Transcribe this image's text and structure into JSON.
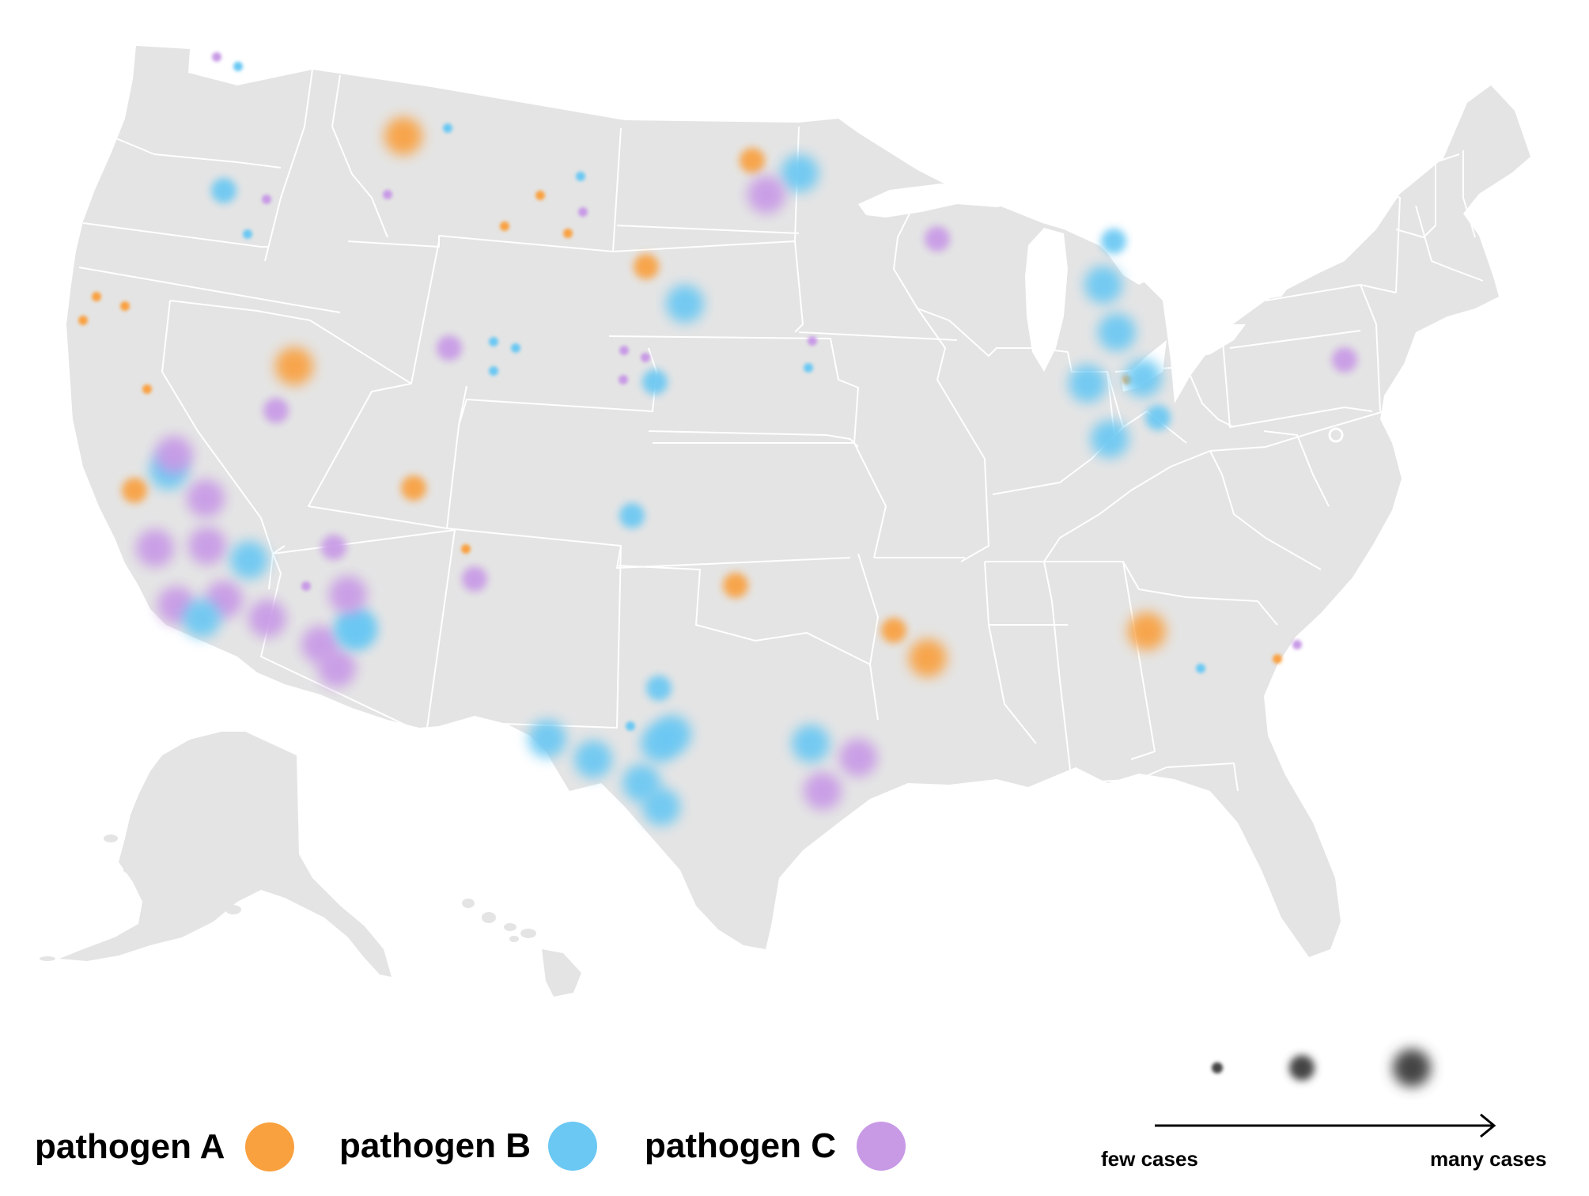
{
  "colors": {
    "land": "#e4e4e4",
    "border": "#ffffff",
    "pathogen_a": "#f9a03f",
    "pathogen_b": "#6ac8f3",
    "pathogen_c": "#c89ae6",
    "scale_dot": "#444444"
  },
  "legend": {
    "pathogen_a": "pathogen A",
    "pathogen_b": "pathogen B",
    "pathogen_c": "pathogen C",
    "few": "few cases",
    "many": "many cases"
  },
  "scale_levels": [
    "small",
    "medium",
    "large"
  ],
  "clusters": [
    {
      "pathogen": "A",
      "size": "large",
      "place": "western Montana"
    },
    {
      "pathogen": "A",
      "size": "large",
      "place": "northern Nevada"
    },
    {
      "pathogen": "A",
      "size": "medium",
      "place": "Utah"
    },
    {
      "pathogen": "A",
      "size": "medium",
      "place": "northern California"
    },
    {
      "pathogen": "A",
      "size": "medium",
      "place": "North Dakota"
    },
    {
      "pathogen": "A",
      "size": "medium",
      "place": "South Dakota"
    },
    {
      "pathogen": "A",
      "size": "medium",
      "place": "Oklahoma"
    },
    {
      "pathogen": "A",
      "size": "medium",
      "place": "western Arkansas"
    },
    {
      "pathogen": "A",
      "size": "large",
      "place": "Arkansas"
    },
    {
      "pathogen": "A",
      "size": "large",
      "place": "northern Georgia"
    },
    {
      "pathogen": "B",
      "size": "medium",
      "place": "Oregon"
    },
    {
      "pathogen": "B",
      "size": "large",
      "place": "Minnesota"
    },
    {
      "pathogen": "B",
      "size": "large",
      "place": "South Dakota"
    },
    {
      "pathogen": "B",
      "size": "medium",
      "place": "Nebraska"
    },
    {
      "pathogen": "B",
      "size": "medium",
      "place": "Colorado"
    },
    {
      "pathogen": "B",
      "size": "large",
      "place": "Michigan"
    },
    {
      "pathogen": "B",
      "size": "large",
      "place": "Indiana"
    },
    {
      "pathogen": "B",
      "size": "medium",
      "place": "Ohio"
    },
    {
      "pathogen": "B",
      "size": "large",
      "place": "west Texas"
    },
    {
      "pathogen": "B",
      "size": "large",
      "place": "central Texas"
    },
    {
      "pathogen": "B",
      "size": "large",
      "place": "east Texas"
    },
    {
      "pathogen": "B",
      "size": "large",
      "place": "southern California"
    },
    {
      "pathogen": "B",
      "size": "large",
      "place": "Arizona"
    },
    {
      "pathogen": "C",
      "size": "large",
      "place": "North Dakota"
    },
    {
      "pathogen": "C",
      "size": "medium",
      "place": "Wisconsin"
    },
    {
      "pathogen": "C",
      "size": "medium",
      "place": "Wyoming"
    },
    {
      "pathogen": "C",
      "size": "medium",
      "place": "northern Nevada"
    },
    {
      "pathogen": "C",
      "size": "large",
      "place": "California"
    },
    {
      "pathogen": "C",
      "size": "large",
      "place": "Arizona"
    },
    {
      "pathogen": "C",
      "size": "medium",
      "place": "New Mexico"
    },
    {
      "pathogen": "C",
      "size": "large",
      "place": "east Texas"
    },
    {
      "pathogen": "C",
      "size": "medium",
      "place": "Pennsylvania"
    }
  ]
}
